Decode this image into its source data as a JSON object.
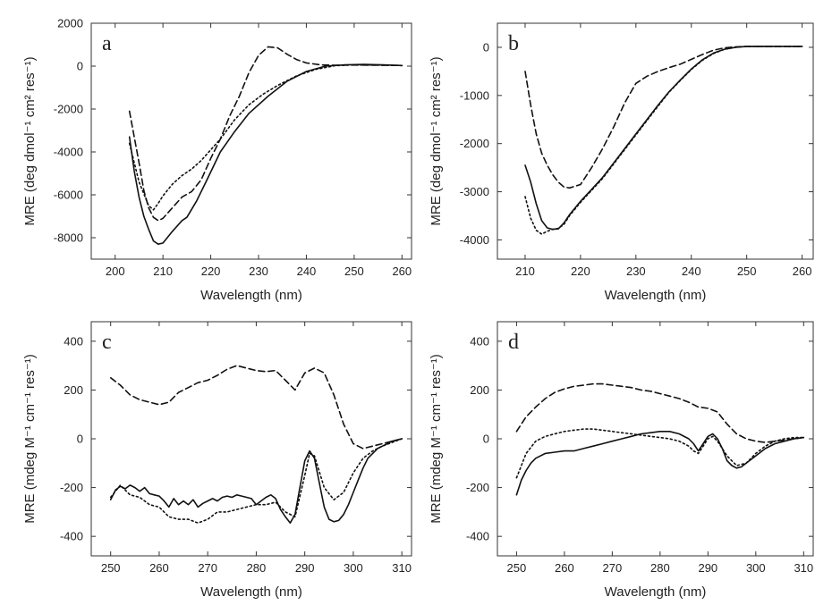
{
  "chart_data": [
    {
      "type": "line",
      "panel": "a",
      "xlabel": "Wavelength (nm)",
      "ylabel": "MRE (deg dmol⁻¹ cm² res⁻¹)",
      "xlim": [
        195,
        262
      ],
      "ylim": [
        -9000,
        2000
      ],
      "xticks": [
        200,
        210,
        220,
        230,
        240,
        250,
        260
      ],
      "yticks": [
        -8000,
        -6000,
        -4000,
        -2000,
        0,
        2000
      ],
      "series": [
        {
          "style": "solid",
          "x": [
            203,
            204,
            205,
            206,
            207,
            208,
            209,
            210,
            212,
            214,
            215,
            217,
            219,
            222,
            225,
            228,
            232,
            236,
            240,
            244,
            248,
            252,
            256,
            260
          ],
          "y": [
            -3300,
            -4900,
            -6100,
            -7000,
            -7600,
            -8150,
            -8300,
            -8250,
            -7700,
            -7200,
            -7050,
            -6300,
            -5400,
            -4000,
            -3050,
            -2200,
            -1400,
            -700,
            -250,
            0,
            60,
            80,
            60,
            30
          ]
        },
        {
          "style": "dashed",
          "x": [
            203,
            205,
            206,
            207,
            208,
            209,
            210,
            212,
            214,
            216,
            218,
            220,
            222,
            224,
            226,
            228,
            230,
            232,
            234,
            236,
            238,
            240,
            243,
            246,
            250,
            255,
            260
          ],
          "y": [
            -2100,
            -4500,
            -5800,
            -6600,
            -7050,
            -7200,
            -7100,
            -6600,
            -6100,
            -5850,
            -5300,
            -4300,
            -3400,
            -2300,
            -1400,
            -300,
            500,
            900,
            850,
            550,
            300,
            150,
            60,
            40,
            50,
            40,
            30
          ]
        },
        {
          "style": "dotted",
          "x": [
            203,
            205,
            207,
            208,
            209,
            210,
            212,
            214,
            216,
            218,
            220,
            222,
            225,
            228,
            231,
            234,
            238,
            242,
            246,
            250,
            255,
            260
          ],
          "y": [
            -3600,
            -5400,
            -6500,
            -6700,
            -6400,
            -6050,
            -5500,
            -5100,
            -4800,
            -4400,
            -3900,
            -3400,
            -2500,
            -1800,
            -1300,
            -900,
            -450,
            -150,
            20,
            60,
            50,
            30
          ]
        }
      ]
    },
    {
      "type": "line",
      "panel": "b",
      "xlabel": "Wavelength (nm)",
      "ylabel": "MRE (deg dmol⁻¹ cm² res⁻¹)",
      "xlim": [
        205,
        262
      ],
      "ylim": [
        -4400,
        500
      ],
      "xticks": [
        210,
        220,
        230,
        240,
        250,
        260
      ],
      "yticks": [
        -4000,
        -3000,
        -2000,
        -1000,
        0
      ],
      "series": [
        {
          "style": "solid",
          "x": [
            210,
            211,
            212,
            213,
            214,
            215,
            216,
            217,
            218,
            220,
            222,
            224,
            226,
            228,
            230,
            232,
            234,
            236,
            238,
            240,
            242,
            244,
            246,
            248,
            250,
            255,
            260
          ],
          "y": [
            -2450,
            -2800,
            -3250,
            -3600,
            -3750,
            -3780,
            -3770,
            -3650,
            -3480,
            -3200,
            -2950,
            -2700,
            -2400,
            -2100,
            -1800,
            -1500,
            -1200,
            -920,
            -680,
            -450,
            -260,
            -120,
            -40,
            0,
            20,
            20,
            20
          ]
        },
        {
          "style": "dashed",
          "x": [
            210,
            211,
            212,
            213,
            214,
            215,
            216,
            217,
            218,
            220,
            222,
            224,
            226,
            228,
            230,
            232,
            234,
            236,
            238,
            240,
            242,
            244,
            246,
            248,
            250,
            255,
            260
          ],
          "y": [
            -500,
            -1200,
            -1800,
            -2200,
            -2450,
            -2650,
            -2800,
            -2900,
            -2920,
            -2850,
            -2500,
            -2100,
            -1650,
            -1150,
            -750,
            -600,
            -500,
            -420,
            -350,
            -250,
            -150,
            -60,
            -10,
            10,
            20,
            20,
            20
          ]
        },
        {
          "style": "dotted",
          "x": [
            210,
            211,
            212,
            213,
            214,
            215,
            216,
            217,
            218,
            220,
            222,
            224,
            226,
            228,
            230,
            232,
            234,
            236,
            238,
            240,
            242,
            244,
            246,
            248,
            250,
            255,
            260
          ],
          "y": [
            -3100,
            -3550,
            -3800,
            -3880,
            -3820,
            -3780,
            -3760,
            -3680,
            -3500,
            -3220,
            -2970,
            -2720,
            -2420,
            -2120,
            -1820,
            -1520,
            -1220,
            -930,
            -690,
            -460,
            -270,
            -130,
            -40,
            0,
            20,
            20,
            20
          ]
        }
      ]
    },
    {
      "type": "line",
      "panel": "c",
      "xlabel": "Wavelength (nm)",
      "ylabel": "MRE (mdeg M⁻¹ cm⁻¹ res⁻¹)",
      "xlim": [
        246,
        312
      ],
      "ylim": [
        -480,
        480
      ],
      "xticks": [
        250,
        260,
        270,
        280,
        290,
        300,
        310
      ],
      "yticks": [
        -400,
        -200,
        0,
        200,
        400
      ],
      "series": [
        {
          "style": "solid",
          "x": [
            250,
            251,
            252,
            253,
            254,
            255,
            256,
            257,
            258,
            259,
            260,
            261,
            262,
            263,
            264,
            265,
            266,
            267,
            268,
            269,
            270,
            271,
            272,
            273,
            274,
            275,
            276,
            277,
            278,
            279,
            280,
            281,
            282,
            283,
            284,
            285,
            286,
            287,
            288,
            289,
            290,
            291,
            292,
            293,
            294,
            295,
            296,
            297,
            298,
            299,
            300,
            301,
            302,
            303,
            304,
            305,
            306,
            307,
            308,
            309,
            310
          ],
          "y": [
            -250,
            -210,
            -195,
            -205,
            -190,
            -200,
            -215,
            -200,
            -225,
            -230,
            -235,
            -255,
            -280,
            -245,
            -270,
            -255,
            -270,
            -250,
            -280,
            -265,
            -255,
            -245,
            -255,
            -240,
            -235,
            -240,
            -230,
            -235,
            -240,
            -245,
            -270,
            -255,
            -240,
            -230,
            -245,
            -290,
            -320,
            -345,
            -310,
            -200,
            -90,
            -50,
            -80,
            -180,
            -280,
            -330,
            -340,
            -335,
            -310,
            -270,
            -220,
            -170,
            -120,
            -80,
            -60,
            -40,
            -30,
            -20,
            -10,
            -5,
            0
          ]
        },
        {
          "style": "dashed",
          "x": [
            250,
            252,
            254,
            256,
            258,
            260,
            262,
            264,
            266,
            268,
            270,
            272,
            274,
            276,
            278,
            280,
            282,
            284,
            286,
            288,
            290,
            292,
            294,
            296,
            298,
            300,
            302,
            304,
            306,
            308,
            310
          ],
          "y": [
            250,
            220,
            180,
            160,
            150,
            140,
            150,
            190,
            210,
            230,
            240,
            260,
            285,
            300,
            290,
            280,
            275,
            280,
            240,
            200,
            270,
            290,
            270,
            180,
            60,
            -20,
            -40,
            -30,
            -20,
            -10,
            0
          ]
        },
        {
          "style": "dotted",
          "x": [
            250,
            252,
            254,
            256,
            258,
            260,
            262,
            264,
            266,
            268,
            270,
            272,
            274,
            276,
            278,
            280,
            282,
            284,
            286,
            288,
            290,
            291,
            292,
            294,
            296,
            298,
            300,
            302,
            304,
            306,
            308,
            310
          ],
          "y": [
            -240,
            -190,
            -230,
            -240,
            -270,
            -280,
            -320,
            -330,
            -330,
            -345,
            -330,
            -300,
            -300,
            -290,
            -280,
            -270,
            -270,
            -260,
            -300,
            -320,
            -150,
            -60,
            -70,
            -200,
            -250,
            -220,
            -140,
            -80,
            -50,
            -30,
            -15,
            0
          ]
        }
      ]
    },
    {
      "type": "line",
      "panel": "d",
      "xlabel": "Wavelength (nm)",
      "ylabel": "MRE (mdeg M⁻¹ cm⁻¹ res⁻¹)",
      "xlim": [
        246,
        312
      ],
      "ylim": [
        -480,
        480
      ],
      "xticks": [
        250,
        260,
        270,
        280,
        290,
        300,
        310
      ],
      "yticks": [
        -400,
        -200,
        0,
        200,
        400
      ],
      "series": [
        {
          "style": "solid",
          "x": [
            250,
            251,
            252,
            253,
            254,
            256,
            258,
            260,
            262,
            264,
            266,
            268,
            270,
            272,
            274,
            276,
            278,
            280,
            282,
            284,
            286,
            287,
            288,
            289,
            290,
            291,
            292,
            293,
            294,
            295,
            296,
            297,
            298,
            300,
            302,
            304,
            306,
            308,
            310
          ],
          "y": [
            -230,
            -170,
            -130,
            -100,
            -80,
            -60,
            -55,
            -50,
            -50,
            -40,
            -30,
            -20,
            -10,
            0,
            10,
            20,
            25,
            30,
            30,
            20,
            0,
            -20,
            -50,
            -20,
            10,
            20,
            0,
            -40,
            -90,
            -110,
            -120,
            -115,
            -100,
            -70,
            -40,
            -20,
            -10,
            0,
            5
          ]
        },
        {
          "style": "dashed",
          "x": [
            250,
            252,
            254,
            256,
            258,
            260,
            262,
            264,
            266,
            268,
            270,
            272,
            274,
            276,
            278,
            280,
            282,
            284,
            286,
            288,
            290,
            292,
            294,
            296,
            298,
            300,
            302,
            304,
            306,
            308,
            310
          ],
          "y": [
            30,
            90,
            130,
            165,
            190,
            205,
            215,
            220,
            225,
            225,
            220,
            215,
            210,
            200,
            195,
            185,
            175,
            165,
            150,
            130,
            125,
            110,
            60,
            20,
            0,
            -10,
            -15,
            -10,
            -5,
            0,
            5
          ]
        },
        {
          "style": "dotted",
          "x": [
            250,
            252,
            254,
            256,
            258,
            260,
            262,
            264,
            266,
            268,
            270,
            272,
            274,
            276,
            278,
            280,
            282,
            284,
            286,
            287,
            288,
            289,
            290,
            291,
            292,
            294,
            296,
            298,
            300,
            302,
            304,
            306,
            308,
            310
          ],
          "y": [
            -160,
            -60,
            -10,
            10,
            20,
            30,
            35,
            40,
            40,
            35,
            30,
            25,
            20,
            15,
            10,
            5,
            0,
            -10,
            -30,
            -50,
            -60,
            -30,
            0,
            10,
            -10,
            -70,
            -110,
            -100,
            -60,
            -30,
            -10,
            0,
            5,
            5
          ]
        }
      ]
    }
  ]
}
